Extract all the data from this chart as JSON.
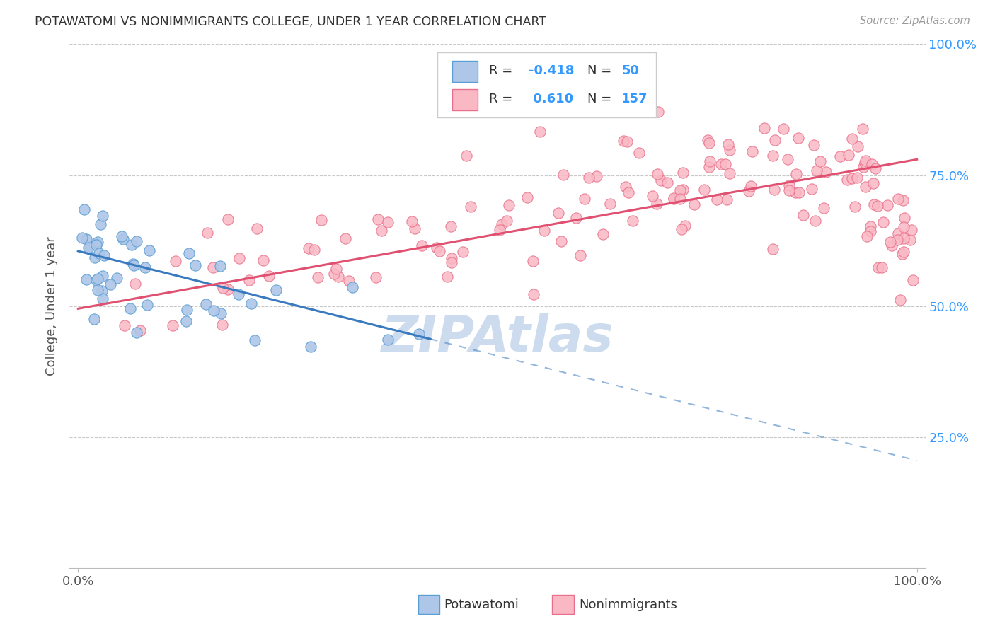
{
  "title": "POTAWATOMI VS NONIMMIGRANTS COLLEGE, UNDER 1 YEAR CORRELATION CHART",
  "source_text": "Source: ZipAtlas.com",
  "ylabel": "College, Under 1 year",
  "background_color": "#ffffff",
  "grid_color": "#c8c8c8",
  "watermark_text": "ZIPAtlas",
  "watermark_color": "#ccdcee",
  "potawatomi_color": "#aec6e8",
  "nonimmigrants_color": "#f9b8c4",
  "potawatomi_edge": "#5a9fd4",
  "nonimmigrants_edge": "#e8708a",
  "legend_R1": "-0.418",
  "legend_N1": "50",
  "legend_R2": "0.610",
  "legend_N2": "157",
  "legend_label1": "Potawatomi",
  "legend_label2": "Nonimmigrants",
  "blue_line_color": "#3a7abf",
  "pink_line_color": "#e05070",
  "value_color": "#3399ff",
  "title_color": "#333333",
  "source_color": "#999999",
  "ylabel_color": "#555555"
}
